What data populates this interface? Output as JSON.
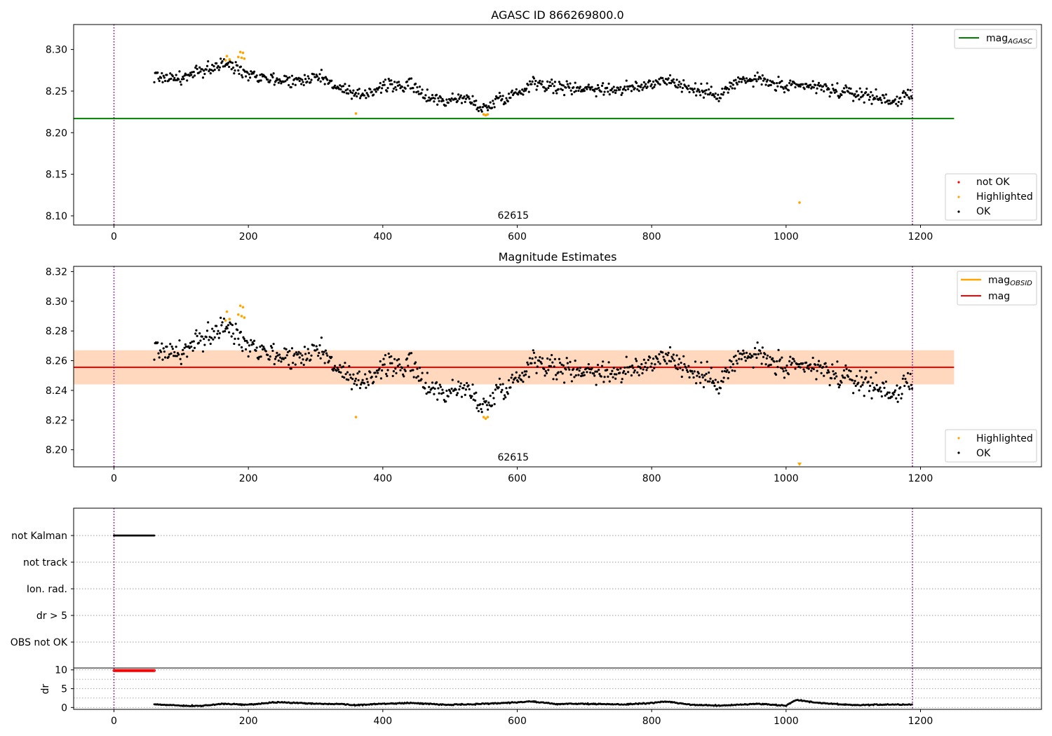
{
  "colors": {
    "ok": "#000000",
    "not_ok": "#ff0000",
    "highlighted": "#ffa500",
    "mag_agasc": "#008000",
    "mag_obsid": "#ffa500",
    "mag": "#ff0000",
    "obsid_line": "#800080",
    "band_fill": "#ffcfc0"
  },
  "chart_data": [
    {
      "type": "scatter",
      "title": "AGASC ID 866269800.0",
      "x_range": [
        -60,
        1380
      ],
      "y_range": [
        8.089,
        8.33
      ],
      "x_ticks": [
        "0",
        "200",
        "400",
        "600",
        "800",
        "1000",
        "1200"
      ],
      "y_ticks": [
        "8.10",
        "8.15",
        "8.20",
        "8.25",
        "8.30"
      ],
      "mag_agasc": 8.217,
      "mag_line_x_range": [
        -60,
        1250
      ],
      "obsid_lines_x": [
        0,
        1188
      ],
      "obsid_label": "62615",
      "obsid_label_x": 594,
      "series": [
        {
          "name": "not OK",
          "points": []
        },
        {
          "name": "Highlighted",
          "points": [
            [
              166,
              8.287
            ],
            [
              168,
              8.292
            ],
            [
              172,
              8.288
            ],
            [
              185,
              8.291
            ],
            [
              188,
              8.297
            ],
            [
              190,
              8.29
            ],
            [
              192,
              8.296
            ],
            [
              194,
              8.289
            ],
            [
              360,
              8.223
            ],
            [
              550,
              8.222
            ],
            [
              553,
              8.221
            ],
            [
              556,
              8.222
            ],
            [
              1020,
              8.116
            ]
          ]
        },
        {
          "name": "OK",
          "trace_x_range": [
            60,
            1188
          ],
          "trace_step": 1.25,
          "trace_anchors": [
            [
              60,
              8.268
            ],
            [
              100,
              8.265
            ],
            [
              140,
              8.277
            ],
            [
              165,
              8.283
            ],
            [
              200,
              8.272
            ],
            [
              240,
              8.264
            ],
            [
              280,
              8.262
            ],
            [
              300,
              8.27
            ],
            [
              340,
              8.252
            ],
            [
              360,
              8.243
            ],
            [
              400,
              8.256
            ],
            [
              440,
              8.257
            ],
            [
              460,
              8.246
            ],
            [
              490,
              8.238
            ],
            [
              520,
              8.242
            ],
            [
              555,
              8.228
            ],
            [
              570,
              8.241
            ],
            [
              600,
              8.247
            ],
            [
              625,
              8.262
            ],
            [
              660,
              8.254
            ],
            [
              700,
              8.254
            ],
            [
              740,
              8.252
            ],
            [
              780,
              8.254
            ],
            [
              820,
              8.265
            ],
            [
              860,
              8.252
            ],
            [
              900,
              8.246
            ],
            [
              930,
              8.262
            ],
            [
              960,
              8.264
            ],
            [
              1000,
              8.254
            ],
            [
              1040,
              8.256
            ],
            [
              1080,
              8.249
            ],
            [
              1120,
              8.245
            ],
            [
              1160,
              8.238
            ],
            [
              1188,
              8.245
            ]
          ],
          "trace_scatter": 0.0065
        }
      ],
      "legend_lines": [
        {
          "label": "mag",
          "subscript": "AGASC"
        }
      ],
      "legend_points": [
        "not OK",
        "Highlighted",
        "OK"
      ]
    },
    {
      "type": "scatter",
      "title": "Magnitude Estimates",
      "x_range": [
        -60,
        1380
      ],
      "y_range": [
        8.1885,
        8.3235
      ],
      "x_ticks": [
        "0",
        "200",
        "400",
        "600",
        "800",
        "1000",
        "1200"
      ],
      "y_ticks": [
        "8.20",
        "8.22",
        "8.24",
        "8.26",
        "8.28",
        "8.30",
        "8.32"
      ],
      "mag": 8.2555,
      "mag_band": [
        8.244,
        8.267
      ],
      "mag_obsid_band": [
        8.244,
        8.267
      ],
      "mag_line_x_range": [
        -60,
        1250
      ],
      "obsid_lines_x": [
        0,
        1188
      ],
      "obsid_label": "62615",
      "obsid_label_x": 594,
      "series": [
        {
          "name": "Highlighted",
          "points": [
            [
              166,
              8.287
            ],
            [
              168,
              8.293
            ],
            [
              172,
              8.288
            ],
            [
              185,
              8.291
            ],
            [
              188,
              8.297
            ],
            [
              190,
              8.29
            ],
            [
              192,
              8.296
            ],
            [
              194,
              8.289
            ],
            [
              360,
              8.222
            ],
            [
              550,
              8.222
            ],
            [
              553,
              8.221
            ],
            [
              556,
              8.222
            ],
            [
              1020,
              8.19
            ]
          ]
        },
        {
          "name": "OK",
          "trace_x_range": [
            60,
            1188
          ],
          "trace_step": 1.25,
          "trace_anchors": [
            [
              60,
              8.268
            ],
            [
              100,
              8.265
            ],
            [
              140,
              8.277
            ],
            [
              165,
              8.283
            ],
            [
              200,
              8.272
            ],
            [
              240,
              8.264
            ],
            [
              280,
              8.262
            ],
            [
              300,
              8.27
            ],
            [
              340,
              8.252
            ],
            [
              360,
              8.243
            ],
            [
              400,
              8.256
            ],
            [
              440,
              8.257
            ],
            [
              460,
              8.246
            ],
            [
              490,
              8.238
            ],
            [
              520,
              8.242
            ],
            [
              555,
              8.228
            ],
            [
              570,
              8.241
            ],
            [
              600,
              8.247
            ],
            [
              625,
              8.262
            ],
            [
              660,
              8.254
            ],
            [
              700,
              8.254
            ],
            [
              740,
              8.252
            ],
            [
              780,
              8.254
            ],
            [
              820,
              8.265
            ],
            [
              860,
              8.252
            ],
            [
              900,
              8.246
            ],
            [
              930,
              8.262
            ],
            [
              960,
              8.264
            ],
            [
              1000,
              8.254
            ],
            [
              1040,
              8.256
            ],
            [
              1080,
              8.249
            ],
            [
              1120,
              8.245
            ],
            [
              1160,
              8.238
            ],
            [
              1188,
              8.245
            ]
          ],
          "trace_scatter": 0.0065
        }
      ],
      "legend_lines": [
        {
          "label": "mag",
          "subscript": "OBSID"
        },
        {
          "label": "mag",
          "subscript": ""
        }
      ],
      "legend_points": [
        "Highlighted",
        "OK"
      ]
    },
    {
      "type": "scatter",
      "title": "",
      "x_range": [
        -60,
        1380
      ],
      "flag_labels": [
        "not Kalman",
        "not track",
        "Ion. rad.",
        "dr > 5",
        "OBS not OK"
      ],
      "flags": [
        {
          "label": "not Kalman",
          "x_range": [
            0,
            60
          ]
        }
      ],
      "obsid_lines_x": [
        0,
        1188
      ]
    },
    {
      "type": "scatter",
      "title": "",
      "x_range": [
        -60,
        1380
      ],
      "y_range": [
        -0.5,
        10.5
      ],
      "x_ticks": [
        "0",
        "200",
        "400",
        "600",
        "800",
        "1000",
        "1200"
      ],
      "y_ticks": [
        "0",
        "5",
        "10"
      ],
      "ylabel": "dr",
      "gridlines_y": [
        0,
        2.5,
        5,
        7.5,
        10
      ],
      "clipped": {
        "x_range": [
          0,
          60
        ],
        "value": 10
      },
      "obsid_lines_x": [
        0,
        1188
      ],
      "trace_x_range": [
        60,
        1188
      ],
      "trace_anchors": [
        [
          60,
          0.8
        ],
        [
          100,
          0.5
        ],
        [
          130,
          0.4
        ],
        [
          160,
          1.0
        ],
        [
          200,
          0.7
        ],
        [
          240,
          1.4
        ],
        [
          300,
          1.0
        ],
        [
          340,
          0.9
        ],
        [
          360,
          0.6
        ],
        [
          400,
          1.0
        ],
        [
          440,
          1.2
        ],
        [
          500,
          0.7
        ],
        [
          560,
          1.0
        ],
        [
          620,
          1.6
        ],
        [
          660,
          0.9
        ],
        [
          700,
          1.0
        ],
        [
          760,
          0.8
        ],
        [
          800,
          1.2
        ],
        [
          820,
          1.6
        ],
        [
          860,
          0.7
        ],
        [
          900,
          0.5
        ],
        [
          960,
          1.0
        ],
        [
          1000,
          0.5
        ],
        [
          1015,
          2.0
        ],
        [
          1050,
          1.2
        ],
        [
          1100,
          0.6
        ],
        [
          1150,
          0.8
        ],
        [
          1188,
          0.8
        ]
      ]
    }
  ]
}
